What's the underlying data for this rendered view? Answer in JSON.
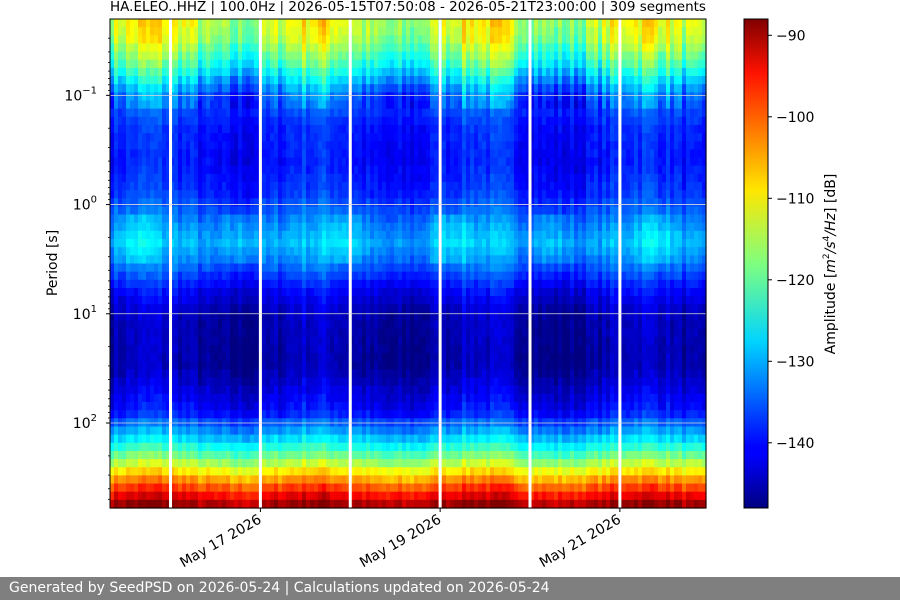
{
  "chart_data": {
    "type": "heatmap",
    "title": "HA.ELEO..HHZ | 100.0Hz | 2026-05-15T07:50:08 - 2026-05-21T23:00:00 | 309 segments",
    "xlabel": "",
    "ylabel": "Period [s]",
    "colorbar_label": "Amplitude [m²/s⁴/Hz] [dB]",
    "colorbar_label_parts": {
      "prefix": "Amplitude [",
      "m": "m",
      "two": "2",
      "slash": "/s",
      "four": "4",
      "hz": "/Hz",
      "suffix": "] [dB]"
    },
    "colormap": "jet",
    "y_scale": "log",
    "y_inverted": true,
    "ylim": [
      0.02,
      600
    ],
    "y_tick_labels": [
      {
        "value": 0.1,
        "base": "10",
        "exp": "−1"
      },
      {
        "value": 1,
        "base": "10",
        "exp": "0"
      },
      {
        "value": 10,
        "base": "10",
        "exp": "1"
      },
      {
        "value": 100,
        "base": "10",
        "exp": "2"
      }
    ],
    "x_range": [
      "2026-05-15T07:50:08",
      "2026-05-21T23:00:00"
    ],
    "x_tick_labels": [
      {
        "date": "2026-05-17",
        "label": "May 17 2026"
      },
      {
        "date": "2026-05-19",
        "label": "May 19 2026"
      },
      {
        "date": "2026-05-21",
        "label": "May 21 2026"
      }
    ],
    "gaps": [
      "2026-05-16T00:00:00",
      "2026-05-17T00:00:00",
      "2026-05-18T00:00:00",
      "2026-05-19T00:00:00",
      "2026-05-20T00:00:00",
      "2026-05-21T00:00:00"
    ],
    "grid": "horizontal",
    "colorbar_range_db": [
      -148,
      -88
    ],
    "colorbar_ticks": [
      -90,
      -100,
      -110,
      -120,
      -130,
      -140
    ],
    "colorbar_tick_labels": [
      "−90",
      "−100",
      "−110",
      "−120",
      "−130",
      "−140"
    ],
    "period_profile_db": [
      {
        "period": 0.02,
        "db": -113
      },
      {
        "period": 0.03,
        "db": -115
      },
      {
        "period": 0.05,
        "db": -122
      },
      {
        "period": 0.08,
        "db": -131
      },
      {
        "period": 0.1,
        "db": -135
      },
      {
        "period": 0.2,
        "db": -139
      },
      {
        "period": 0.4,
        "db": -140
      },
      {
        "period": 0.8,
        "db": -138
      },
      {
        "period": 1.5,
        "db": -133
      },
      {
        "period": 2.2,
        "db": -130
      },
      {
        "period": 3.5,
        "db": -134
      },
      {
        "period": 6,
        "db": -141
      },
      {
        "period": 10,
        "db": -145
      },
      {
        "period": 30,
        "db": -146
      },
      {
        "period": 80,
        "db": -140
      },
      {
        "period": 140,
        "db": -128
      },
      {
        "period": 220,
        "db": -117
      },
      {
        "period": 350,
        "db": -103
      },
      {
        "period": 600,
        "db": -88
      }
    ]
  },
  "footer": {
    "text": "Generated by SeedPSD on 2026-05-24 | Calculations updated on 2026-05-24"
  }
}
